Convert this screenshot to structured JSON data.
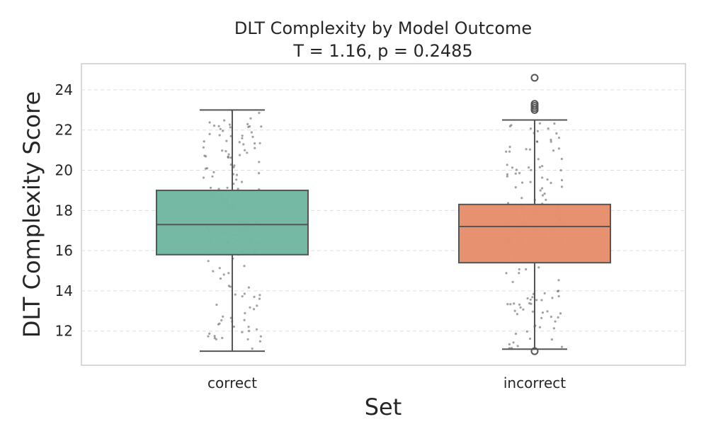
{
  "chart_data": {
    "type": "box",
    "title": "DLT Complexity by Model Outcome",
    "subtitle": "T = 1.16, p = 0.2485",
    "xlabel": "Set",
    "ylabel": "DLT Complexity Score",
    "ylim": [
      10.3,
      25.3
    ],
    "yticks": [
      12,
      14,
      16,
      18,
      20,
      22,
      24
    ],
    "grid": true,
    "categories": [
      "correct",
      "incorrect"
    ],
    "colors": [
      "#72b7a2",
      "#e88f6d"
    ],
    "boxes": [
      {
        "name": "correct",
        "whisker_low": 11.0,
        "q1": 15.8,
        "median": 17.3,
        "q3": 19.0,
        "whisker_high": 23.0,
        "outliers": []
      },
      {
        "name": "incorrect",
        "whisker_low": 11.1,
        "q1": 15.4,
        "median": 17.2,
        "q3": 18.3,
        "whisker_high": 22.5,
        "outliers": [
          11.0,
          23.0,
          23.1,
          23.2,
          23.3,
          24.6
        ]
      }
    ],
    "points_per_group": 200,
    "point_color": "#555555"
  }
}
